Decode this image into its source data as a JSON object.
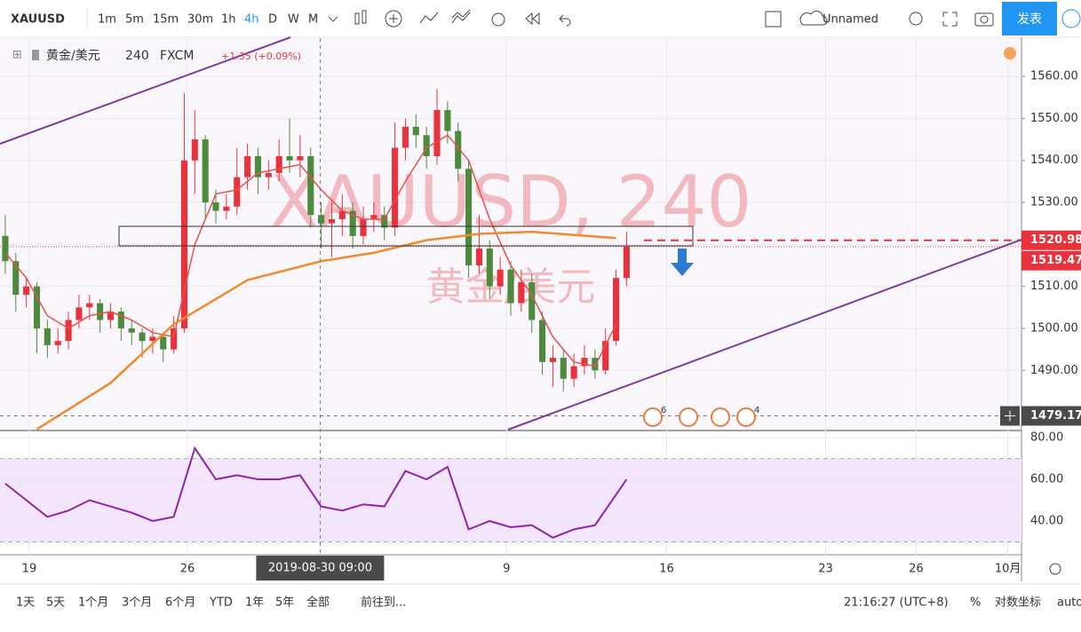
{
  "toolbar": {
    "symbol": "XAUUSD",
    "intervals": [
      "1m",
      "5m",
      "15m",
      "30m",
      "1h",
      "4h",
      "D",
      "W",
      "M"
    ],
    "layout_name": "Unnamed",
    "publish": "发表"
  },
  "legend": {
    "name": "黄金/美元",
    "interval": "240",
    "exchange": "FXCM",
    "change": "+1.35 (+0.09%)"
  },
  "watermark": {
    "symbol": "XAUUSD, 240",
    "name": "黄金/美元"
  },
  "event_badges": [
    "6",
    "4"
  ],
  "crosshair_time": "2019-08-30  09:00",
  "chart_data": [
    {
      "type": "candlestick",
      "up_color": "#e8323c",
      "down_color": "#4e8a3e",
      "candles": [
        [
          1522,
          1527,
          1513,
          1516
        ],
        [
          1516,
          1518,
          1504,
          1508
        ],
        [
          1508,
          1512,
          1505,
          1510
        ],
        [
          1510,
          1511,
          1494,
          1500
        ],
        [
          1500,
          1502,
          1493,
          1496
        ],
        [
          1496,
          1500,
          1494,
          1497
        ],
        [
          1497,
          1504,
          1495,
          1502
        ],
        [
          1502,
          1508,
          1500,
          1505
        ],
        [
          1505,
          1508,
          1502,
          1506
        ],
        [
          1506,
          1507,
          1499,
          1502
        ],
        [
          1502,
          1506,
          1500,
          1504
        ],
        [
          1504,
          1505,
          1497,
          1500
        ],
        [
          1500,
          1502,
          1496,
          1499
        ],
        [
          1499,
          1500,
          1493,
          1497
        ],
        [
          1497,
          1500,
          1494,
          1498
        ],
        [
          1498,
          1499,
          1492,
          1495
        ],
        [
          1495,
          1503,
          1494,
          1500
        ],
        [
          1500,
          1556,
          1499,
          1540
        ],
        [
          1540,
          1552,
          1532,
          1545
        ],
        [
          1545,
          1546,
          1526,
          1530
        ],
        [
          1530,
          1533,
          1525,
          1528
        ],
        [
          1528,
          1532,
          1526,
          1529
        ],
        [
          1529,
          1543,
          1527,
          1536
        ],
        [
          1536,
          1544,
          1533,
          1541
        ],
        [
          1541,
          1543,
          1532,
          1536
        ],
        [
          1536,
          1540,
          1533,
          1537
        ],
        [
          1537,
          1545,
          1535,
          1541
        ],
        [
          1541,
          1550,
          1537,
          1540
        ],
        [
          1540,
          1546,
          1536,
          1541
        ],
        [
          1541,
          1543,
          1524,
          1527
        ],
        [
          1527,
          1530,
          1519,
          1525
        ],
        [
          1525,
          1530,
          1517,
          1526
        ],
        [
          1526,
          1532,
          1522,
          1528
        ],
        [
          1528,
          1530,
          1519,
          1522
        ],
        [
          1522,
          1529,
          1520,
          1526
        ],
        [
          1526,
          1530,
          1523,
          1527
        ],
        [
          1527,
          1529,
          1521,
          1524
        ],
        [
          1524,
          1549,
          1522,
          1543
        ],
        [
          1543,
          1550,
          1540,
          1548
        ],
        [
          1548,
          1551,
          1543,
          1546
        ],
        [
          1546,
          1548,
          1538,
          1541
        ],
        [
          1541,
          1557,
          1539,
          1552
        ],
        [
          1552,
          1554,
          1544,
          1547
        ],
        [
          1547,
          1549,
          1535,
          1538
        ],
        [
          1538,
          1540,
          1512,
          1515
        ],
        [
          1515,
          1527,
          1513,
          1519
        ],
        [
          1519,
          1521,
          1507,
          1510
        ],
        [
          1510,
          1517,
          1508,
          1514
        ],
        [
          1514,
          1516,
          1503,
          1506
        ],
        [
          1506,
          1514,
          1504,
          1511
        ],
        [
          1511,
          1513,
          1499,
          1502
        ],
        [
          1502,
          1504,
          1489,
          1492
        ],
        [
          1492,
          1496,
          1486,
          1493
        ],
        [
          1493,
          1495,
          1485,
          1488
        ],
        [
          1488,
          1494,
          1486,
          1491
        ],
        [
          1491,
          1496,
          1489,
          1493
        ],
        [
          1493,
          1495,
          1488,
          1490
        ],
        [
          1490,
          1500,
          1489,
          1497
        ],
        [
          1497,
          1514,
          1496,
          1512
        ],
        [
          1512,
          1523,
          1510,
          1519.47
        ]
      ],
      "lines": [
        {
          "color": "#e8504a",
          "x": [
            0,
            2,
            4,
            6,
            8,
            10,
            12,
            14,
            16,
            18,
            20,
            22,
            24,
            26,
            28,
            30,
            32,
            34,
            36,
            38,
            40,
            42,
            44,
            46,
            48,
            50,
            52,
            54,
            56,
            58
          ],
          "values": [
            1518,
            1512,
            1503,
            1500,
            1503,
            1504,
            1502,
            1499,
            1498,
            1520,
            1532,
            1533,
            1537,
            1538,
            1539,
            1533,
            1528,
            1526,
            1526,
            1535,
            1543,
            1546,
            1540,
            1526,
            1515,
            1508,
            1498,
            1492,
            1491,
            1501
          ]
        },
        {
          "color": "#f08a2c",
          "x": [
            3,
            10,
            16,
            23,
            30,
            35,
            40,
            45,
            50,
            58
          ],
          "values": [
            1476,
            1487,
            1501,
            1511.5,
            1516,
            1518,
            1521,
            1522.5,
            1523,
            1521.5
          ]
        }
      ],
      "xlim": [
        -0.5,
        96.5
      ],
      "xticks": [
        {
          "value": 2.28,
          "label": "19"
        },
        {
          "value": 17.3,
          "label": "26"
        },
        {
          "value": 47.6,
          "label": "9"
        },
        {
          "value": 62.8,
          "label": "16"
        },
        {
          "value": 77.9,
          "label": "23"
        },
        {
          "value": 86.5,
          "label": "26"
        },
        {
          "value": 95.2,
          "label": "10月"
        }
      ],
      "ylim": [
        1475.9,
        1569.1
      ],
      "yticks": [
        {
          "value": 1560,
          "label": "1560.00"
        },
        {
          "value": 1550,
          "label": "1550.00"
        },
        {
          "value": 1540,
          "label": "1540.00"
        },
        {
          "value": 1530,
          "label": "1530.00"
        },
        {
          "value": 1520,
          "label": "1520.00"
        },
        {
          "value": 1510,
          "label": "1510.00"
        },
        {
          "value": 1500,
          "label": "1500.00"
        },
        {
          "value": 1490,
          "label": "1490.00"
        }
      ],
      "bid_price": 1520.98,
      "last_price": 1519.47,
      "crosshair_price": 1479.17,
      "crosshair_x": 29.9
    },
    {
      "type": "line",
      "color": "#8e24aa",
      "band": [
        30,
        70
      ],
      "x": [
        0,
        2,
        4,
        6,
        8,
        10,
        12,
        14,
        16,
        18,
        20,
        22,
        24,
        26,
        28,
        30,
        32,
        34,
        36,
        38,
        40,
        42,
        44,
        46,
        48,
        50,
        52,
        54,
        56,
        59
      ],
      "values": [
        58,
        50,
        42,
        45,
        50,
        47,
        44,
        40,
        42,
        75,
        60,
        62,
        60,
        60,
        62,
        47,
        45,
        48,
        47,
        64,
        60,
        66,
        36,
        40,
        37,
        38,
        32,
        36,
        38,
        60
      ],
      "ylim": [
        23.8,
        82.6
      ],
      "yticks": [
        {
          "value": 80,
          "label": "80.00"
        },
        {
          "value": 60,
          "label": "60.00"
        },
        {
          "value": 40,
          "label": "40.00"
        }
      ]
    }
  ],
  "bottom_bar": {
    "ranges": [
      "1天",
      "5天",
      "1个月",
      "3个月",
      "6个月",
      "YTD",
      "1年",
      "5年",
      "全部"
    ],
    "goto": "前往到...",
    "clock": "21:16:27 (UTC+8)",
    "percent": "%",
    "log": "对数坐标",
    "auto": "auto"
  }
}
